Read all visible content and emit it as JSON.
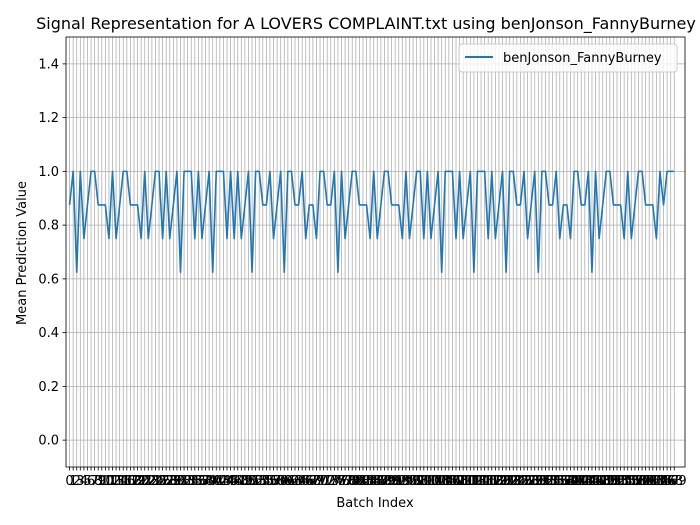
{
  "chart_data": {
    "type": "line",
    "title": "Signal Representation for A LOVERS COMPLAINT.txt using benJonson_FannyBurney",
    "xlabel": "Batch Index",
    "ylabel": "Mean Prediction Value",
    "ylim": [
      -0.1,
      1.5
    ],
    "xlim": [
      -1,
      172
    ],
    "yticks": [
      0.0,
      0.2,
      0.4,
      0.6,
      0.8,
      1.0,
      1.2,
      1.4
    ],
    "ytick_labels": [
      "0.0",
      "0.2",
      "0.4",
      "0.6",
      "0.8",
      "1.0",
      "1.2",
      "1.4"
    ],
    "grid": true,
    "legend_position": "upper-right",
    "series": [
      {
        "name": "benJonson_FannyBurney",
        "color": "#1f77b4",
        "x_start": 0,
        "values": [
          0.875,
          1.0,
          0.625,
          1.0,
          0.75,
          0.875,
          1.0,
          1.0,
          0.875,
          0.875,
          0.875,
          0.75,
          1.0,
          0.75,
          0.875,
          1.0,
          1.0,
          0.875,
          0.875,
          0.875,
          0.75,
          1.0,
          0.75,
          0.875,
          1.0,
          1.0,
          0.75,
          1.0,
          0.75,
          0.875,
          1.0,
          0.625,
          1.0,
          1.0,
          1.0,
          0.75,
          1.0,
          0.75,
          0.875,
          1.0,
          0.625,
          1.0,
          1.0,
          1.0,
          0.75,
          1.0,
          0.75,
          1.0,
          0.75,
          0.875,
          1.0,
          0.625,
          1.0,
          1.0,
          0.875,
          0.875,
          1.0,
          0.75,
          0.875,
          1.0,
          0.625,
          1.0,
          1.0,
          0.875,
          0.875,
          1.0,
          0.75,
          0.875,
          0.875,
          0.75,
          1.0,
          1.0,
          0.875,
          0.875,
          1.0,
          0.625,
          1.0,
          0.75,
          0.875,
          1.0,
          1.0,
          0.875,
          0.875,
          0.875,
          0.75,
          1.0,
          0.75,
          0.875,
          1.0,
          1.0,
          0.875,
          0.875,
          0.875,
          0.75,
          1.0,
          0.75,
          0.875,
          1.0,
          1.0,
          0.75,
          1.0,
          0.75,
          0.875,
          1.0,
          0.625,
          1.0,
          1.0,
          1.0,
          0.75,
          1.0,
          0.75,
          0.875,
          1.0,
          0.625,
          1.0,
          1.0,
          1.0,
          0.75,
          1.0,
          0.75,
          0.875,
          1.0,
          0.625,
          1.0,
          1.0,
          0.875,
          0.875,
          1.0,
          0.75,
          0.875,
          1.0,
          0.625,
          1.0,
          1.0,
          0.875,
          0.875,
          1.0,
          0.75,
          0.875,
          0.875,
          0.75,
          1.0,
          1.0,
          0.875,
          0.875,
          1.0,
          0.625,
          1.0,
          0.75,
          0.875,
          1.0,
          1.0,
          0.875,
          0.875,
          0.875,
          0.75,
          1.0,
          0.75,
          0.875,
          1.0,
          1.0,
          0.875,
          0.875,
          0.875,
          0.75,
          1.0,
          0.875,
          1.0,
          1.0,
          1.0
        ]
      }
    ]
  }
}
